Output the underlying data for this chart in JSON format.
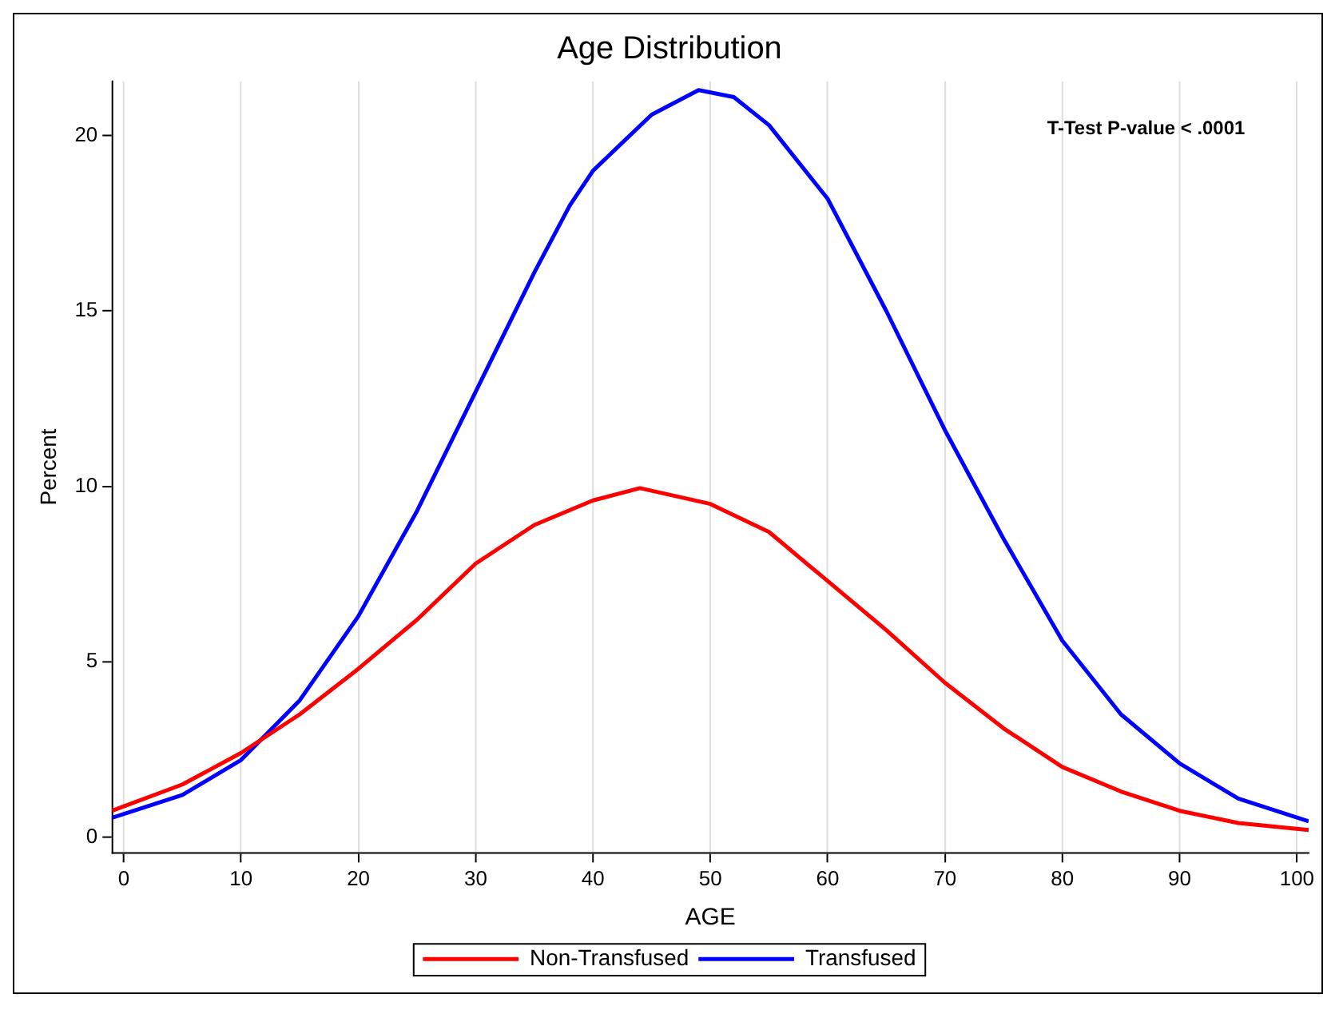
{
  "chart_data": {
    "type": "line",
    "title": "Age Distribution",
    "xlabel": "AGE",
    "ylabel": "Percent",
    "annotations": [
      "T-Test P-value < .0001"
    ],
    "x": [
      -1,
      5,
      10,
      15,
      20,
      25,
      30,
      35,
      40,
      44,
      50,
      55,
      60,
      65,
      70,
      75,
      80,
      85,
      90,
      95,
      101
    ],
    "series": [
      {
        "name": "Non-Transfused",
        "color": "#ff0000",
        "values": [
          0.75,
          1.5,
          2.4,
          3.5,
          4.8,
          6.2,
          7.8,
          8.9,
          9.6,
          9.95,
          9.5,
          8.7,
          7.3,
          5.9,
          4.4,
          3.1,
          2.0,
          1.3,
          0.75,
          0.4,
          0.2
        ]
      },
      {
        "name": "Transfused",
        "color": "#0000ff",
        "x": [
          -1,
          5,
          10,
          15,
          20,
          25,
          30,
          35,
          38,
          40,
          45,
          49,
          52,
          55,
          60,
          65,
          70,
          75,
          80,
          85,
          90,
          95,
          101
        ],
        "values": [
          0.55,
          1.2,
          2.2,
          3.9,
          6.3,
          9.3,
          12.7,
          16.1,
          18.0,
          19.0,
          20.6,
          21.3,
          21.1,
          20.3,
          18.2,
          15.0,
          11.6,
          8.5,
          5.6,
          3.5,
          2.1,
          1.1,
          0.45
        ]
      }
    ],
    "xlim": [
      -1,
      101
    ],
    "xticks": [
      0,
      10,
      20,
      30,
      40,
      50,
      60,
      70,
      80,
      90,
      100
    ],
    "ylim": [
      -0.45,
      21.55
    ],
    "yticks": [
      0,
      5,
      10,
      15,
      20
    ],
    "grid": "x",
    "legend": "bottom",
    "marker": "none",
    "line_style": "solid"
  }
}
